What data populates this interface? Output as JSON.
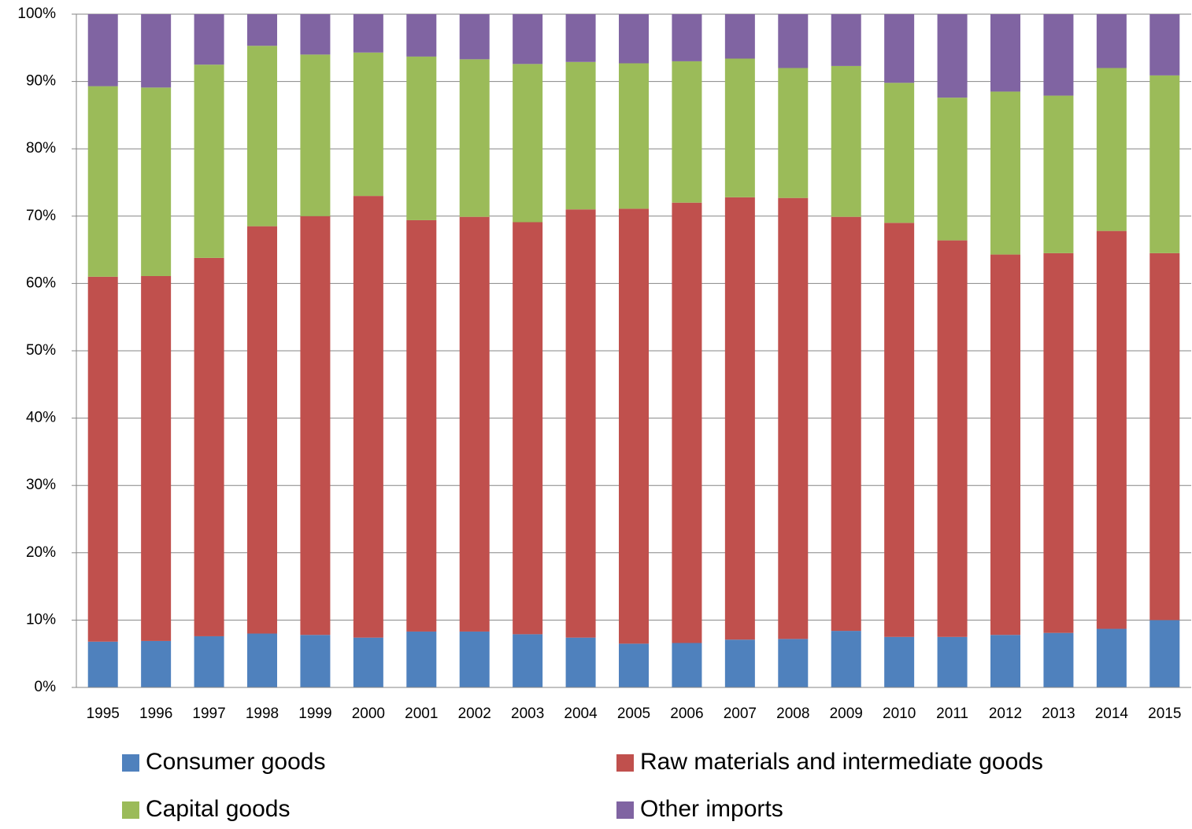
{
  "chart_data": {
    "type": "stacked_bar",
    "categories": [
      "1995",
      "1996",
      "1997",
      "1998",
      "1999",
      "2000",
      "2001",
      "2002",
      "2003",
      "2004",
      "2005",
      "2006",
      "2007",
      "2008",
      "2009",
      "2010",
      "2011",
      "2012",
      "2013",
      "2014",
      "2015"
    ],
    "series": [
      {
        "name": "Consumer goods",
        "color": "#4f81bd",
        "values": [
          6.8,
          6.9,
          7.6,
          8.0,
          7.8,
          7.4,
          8.3,
          8.3,
          7.9,
          7.4,
          6.5,
          6.6,
          7.1,
          7.2,
          8.4,
          7.5,
          7.5,
          7.8,
          8.1,
          8.7,
          10.0
        ]
      },
      {
        "name": "Raw materials and intermediate goods",
        "color": "#c0504d",
        "values": [
          54.2,
          54.2,
          56.2,
          60.5,
          62.2,
          65.6,
          61.1,
          61.6,
          61.2,
          63.6,
          64.6,
          65.4,
          65.7,
          65.5,
          61.5,
          61.5,
          58.9,
          56.5,
          56.4,
          59.1,
          54.5
        ]
      },
      {
        "name": "Capital goods",
        "color": "#9bbb59",
        "values": [
          28.3,
          28.0,
          28.7,
          26.8,
          24.0,
          21.3,
          24.3,
          23.4,
          23.5,
          21.9,
          21.6,
          21.0,
          20.6,
          19.3,
          22.4,
          20.8,
          21.2,
          24.2,
          23.4,
          24.2,
          26.4
        ]
      },
      {
        "name": "Other imports",
        "color": "#8064a2",
        "values": [
          10.7,
          10.9,
          7.5,
          4.7,
          6.0,
          5.7,
          6.3,
          6.7,
          7.4,
          7.1,
          7.3,
          7.0,
          6.6,
          8.0,
          7.7,
          10.2,
          12.4,
          11.5,
          12.1,
          8.0,
          9.1
        ]
      }
    ],
    "ylim": [
      0,
      100
    ],
    "yticks": [
      {
        "value": 0,
        "label": "0%"
      },
      {
        "value": 10,
        "label": "10%"
      },
      {
        "value": 20,
        "label": "20%"
      },
      {
        "value": 30,
        "label": "30%"
      },
      {
        "value": 40,
        "label": "40%"
      },
      {
        "value": 50,
        "label": "50%"
      },
      {
        "value": 60,
        "label": "60%"
      },
      {
        "value": 70,
        "label": "70%"
      },
      {
        "value": 80,
        "label": "80%"
      },
      {
        "value": 90,
        "label": "90%"
      },
      {
        "value": 100,
        "label": "100%"
      }
    ],
    "grid": true
  }
}
